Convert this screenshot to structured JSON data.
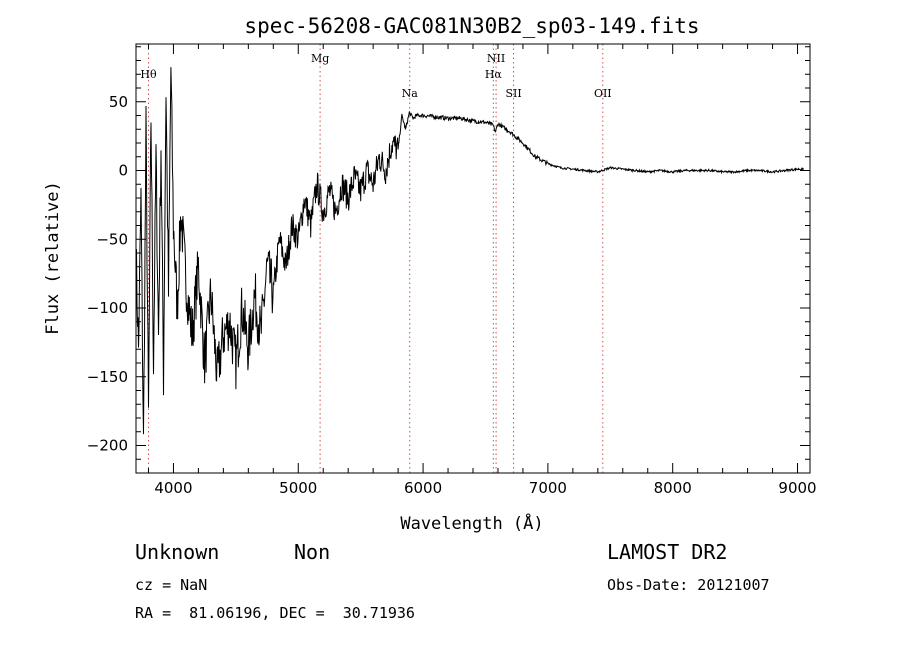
{
  "chart_data": {
    "type": "line",
    "title": "spec-56208-GAC081N30B2_sp03-149.fits",
    "xlabel": "Wavelength (Å)",
    "ylabel": "Flux (relative)",
    "xlim": [
      3700,
      9100
    ],
    "ylim": [
      -220,
      92
    ],
    "xticks": [
      4000,
      5000,
      6000,
      7000,
      8000,
      9000
    ],
    "yticks": [
      -200,
      -150,
      -100,
      -50,
      0,
      50
    ],
    "xtick_labels": [
      "4000",
      "5000",
      "6000",
      "7000",
      "8000",
      "9000"
    ],
    "ytick_labels": [
      "−200",
      "−150",
      "−100",
      "−50",
      "0",
      "50"
    ],
    "series": [
      {
        "x": [
          3700,
          3720,
          3740,
          3760,
          3780,
          3800,
          3820,
          3840,
          3860,
          3880,
          3900,
          3920,
          3940,
          3960,
          3980,
          4000,
          4030,
          4060,
          4100,
          4150,
          4200,
          4250,
          4300,
          4350,
          4400,
          4450,
          4500,
          4550,
          4600,
          4650,
          4700,
          4750,
          4800,
          4850,
          4900,
          4950,
          5000,
          5050,
          5100,
          5150,
          5200,
          5250,
          5300,
          5350,
          5400,
          5450,
          5500,
          5550,
          5600,
          5650,
          5700,
          5750,
          5800,
          5830,
          5860,
          5890,
          5920,
          5950,
          6000,
          6100,
          6200,
          6300,
          6400,
          6500,
          6560,
          6580,
          6600,
          6700,
          6800,
          6900,
          7000,
          7100,
          7200,
          7300,
          7400,
          7500,
          7600,
          7700,
          7800,
          7900,
          8000,
          8100,
          8200,
          8300,
          8400,
          8500,
          8600,
          8700,
          8800,
          8900,
          9000,
          9050
        ],
        "y": [
          -60,
          -130,
          -20,
          -200,
          30,
          -180,
          40,
          -140,
          10,
          -120,
          20,
          -150,
          60,
          -90,
          75,
          -40,
          -100,
          -30,
          -80,
          -120,
          -70,
          -140,
          -90,
          -150,
          -120,
          -110,
          -140,
          -100,
          -130,
          -90,
          -120,
          -70,
          -90,
          -50,
          -70,
          -40,
          -50,
          -20,
          -40,
          -10,
          -30,
          -15,
          -30,
          -10,
          -20,
          -5,
          -15,
          0,
          -10,
          10,
          0,
          20,
          15,
          40,
          30,
          42,
          38,
          40,
          40,
          39,
          38,
          38,
          36,
          35,
          33,
          28,
          34,
          28,
          20,
          10,
          5,
          2,
          1,
          0,
          -1,
          2,
          1,
          0,
          -1,
          0,
          -1,
          0,
          0,
          0,
          -1,
          -1,
          0,
          0,
          -1,
          0,
          1,
          1
        ]
      }
    ],
    "lines": [
      {
        "label": "Hθ",
        "x": 3800,
        "sub": false
      },
      {
        "label": "Mg",
        "x": 5175,
        "sub": false
      },
      {
        "label": "Na",
        "x": 5893,
        "sub": false
      },
      {
        "label": "NII",
        "x": 6585,
        "sub": false
      },
      {
        "label": "Hα",
        "x": 6563,
        "sub": true
      },
      {
        "label": "SII",
        "x": 6725,
        "sub": false
      },
      {
        "label": "OII",
        "x": 7440,
        "sub": false
      }
    ],
    "line_color": "#d05050",
    "curve_color": "#000000"
  },
  "info": {
    "class": "Unknown",
    "subclass": "Non",
    "survey": "LAMOST DR2",
    "cz": "cz = NaN",
    "obs_date": "Obs-Date: 20121007",
    "coords": "RA =  81.06196, DEC =  30.71936"
  }
}
